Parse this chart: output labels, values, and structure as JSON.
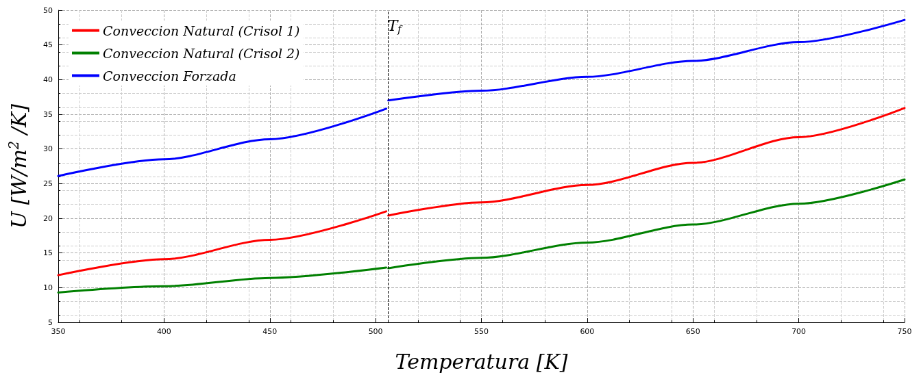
{
  "chart_data": {
    "type": "line",
    "xlabel": "Temperatura [K]",
    "ylabel": "U [W/m$^{2}$ /K]",
    "xlim": [
      350,
      750
    ],
    "xticks": [
      350,
      400,
      450,
      500,
      550,
      600,
      650,
      700,
      750
    ],
    "ylim": [
      5,
      50
    ],
    "yticks": [
      5,
      10,
      15,
      20,
      25,
      30,
      35,
      40,
      45,
      50
    ],
    "grid": true,
    "legend": "top left",
    "marker": "none",
    "line_style": "solid",
    "series": [
      {
        "name": "Conveccion Natural (Crisol 1)",
        "color": "#ff0000",
        "x": [
          350,
          400,
          450,
          505
        ],
        "values": [
          11.8,
          14.1,
          16.9,
          21.0
        ]
      },
      {
        "name": "Conveccion Natural (Crisol 2)",
        "color": "#008000",
        "x": [
          350,
          400,
          450,
          505
        ],
        "values": [
          9.3,
          10.2,
          11.4,
          12.9
        ]
      },
      {
        "name": "Conveccion Forzada",
        "color": "#0000ff",
        "x": [
          350,
          400,
          450,
          505
        ],
        "values": [
          26.1,
          28.5,
          31.4,
          35.8
        ]
      },
      {
        "color": "#ff0000",
        "x": [
          506,
          550,
          600,
          650,
          700,
          750
        ],
        "values": [
          20.4,
          22.3,
          24.8,
          28.0,
          31.7,
          35.9
        ]
      },
      {
        "color": "#008000",
        "x": [
          506,
          550,
          600,
          650,
          700,
          750
        ],
        "values": [
          12.8,
          14.3,
          16.5,
          19.1,
          22.1,
          25.6
        ]
      },
      {
        "color": "#0000ff",
        "x": [
          506,
          550,
          600,
          650,
          700,
          750
        ],
        "values": [
          37.0,
          38.4,
          40.4,
          42.7,
          45.4,
          48.6
        ]
      }
    ],
    "ref_lines": [
      {
        "axis": "x",
        "value": 506,
        "label": "T$_{f}$",
        "color": "#000000",
        "line_style": "dashed"
      }
    ]
  }
}
